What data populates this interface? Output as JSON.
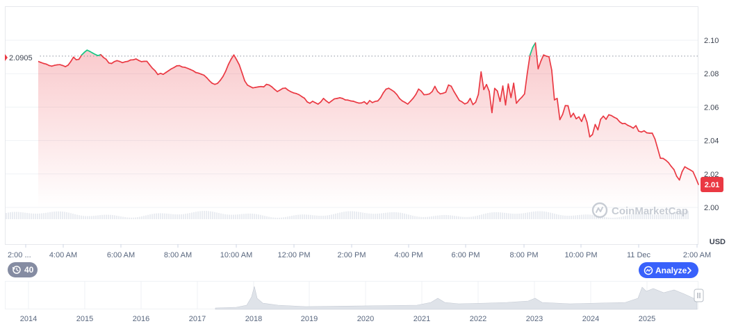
{
  "chart_data": {
    "type": "line",
    "ylabel": "USD",
    "ylim": [
      2.0,
      2.105
    ],
    "y_ticks": [
      "2.00",
      "2.02",
      "2.04",
      "2.06",
      "2.08",
      "2.10"
    ],
    "x_ticks": [
      "2:00 ...",
      "4:00 AM",
      "6:00 AM",
      "8:00 AM",
      "10:00 AM",
      "12:00 PM",
      "2:00 PM",
      "4:00 PM",
      "6:00 PM",
      "8:00 PM",
      "10:00 PM",
      "11 Dec",
      "2:00 AM"
    ],
    "reference_value": 2.0905,
    "reference_label": "2.0905",
    "current_value": 2.01,
    "current_label": "2.01",
    "grid": true,
    "colors": {
      "up": "#16c784",
      "down": "#ea3943",
      "area": "#ea3943"
    },
    "series": [
      {
        "values": [
          2.0873,
          2.0867,
          2.0861,
          2.0857,
          2.0849,
          2.0845,
          2.085,
          2.0853,
          2.0854,
          2.0849,
          2.0842,
          2.0851,
          2.0873,
          2.0899,
          2.0883,
          2.0886,
          2.0912,
          2.0928,
          2.0941,
          2.0933,
          2.0924,
          2.0915,
          2.0908,
          2.0914,
          2.0897,
          2.0886,
          2.0864,
          2.0861,
          2.0872,
          2.0878,
          2.0873,
          2.0866,
          2.0871,
          2.0874,
          2.0882,
          2.0883,
          2.0888,
          2.0879,
          2.0872,
          2.0874,
          2.0874,
          2.0853,
          2.0833,
          2.0818,
          2.0795,
          2.0802,
          2.0796,
          2.0807,
          2.0818,
          2.0829,
          2.0837,
          2.0847,
          2.0848,
          2.084,
          2.0838,
          2.0832,
          2.0825,
          2.0818,
          2.0807,
          2.0803,
          2.0797,
          2.0791,
          2.0776,
          2.0758,
          2.0743,
          2.0736,
          2.0742,
          2.076,
          2.0783,
          2.0815,
          2.0855,
          2.0887,
          2.0912,
          2.0884,
          2.0853,
          2.0806,
          2.0757,
          2.0732,
          2.0723,
          2.0715,
          2.0718,
          2.0721,
          2.0723,
          2.0721,
          2.0736,
          2.0732,
          2.0721,
          2.0706,
          2.0693,
          2.0702,
          2.0712,
          2.0714,
          2.0701,
          2.0692,
          2.0685,
          2.0681,
          2.0674,
          2.0663,
          2.0653,
          2.0631,
          2.0623,
          2.0635,
          2.0626,
          2.0618,
          2.0631,
          2.0652,
          2.0637,
          2.0625,
          2.0637,
          2.0649,
          2.0652,
          2.0656,
          2.0652,
          2.0643,
          2.0642,
          2.0637,
          2.0635,
          2.0629,
          2.0624,
          2.0625,
          2.0632,
          2.0618,
          2.0639,
          2.0627,
          2.0634,
          2.0637,
          2.0656,
          2.0685,
          2.0707,
          2.0713,
          2.0703,
          2.0692,
          2.0675,
          2.0651,
          2.0637,
          2.0628,
          2.0618,
          2.0635,
          2.0653,
          2.0676,
          2.0708,
          2.0695,
          2.0674,
          2.0675,
          2.0679,
          2.0693,
          2.0724,
          2.0693,
          2.0679,
          2.0683,
          2.0689,
          2.0732,
          2.0725,
          2.0694,
          2.0667,
          2.064,
          2.0631,
          2.0619,
          2.0626,
          2.0652,
          2.0615,
          2.0629,
          2.0676,
          2.0811,
          2.0705,
          2.0735,
          2.0694,
          2.0567,
          2.0712,
          2.0696,
          2.0634,
          2.0726,
          2.0613,
          2.0738,
          2.0657,
          2.0743,
          2.0623,
          2.0643,
          2.0659,
          2.0679,
          2.0802,
          2.0911,
          2.0957,
          2.0984,
          2.0829,
          2.0875,
          2.0912,
          2.0905,
          2.0901,
          2.0821,
          2.0643,
          2.0652,
          2.0525,
          2.0556,
          2.0609,
          2.0608,
          2.054,
          2.0563,
          2.053,
          2.0542,
          2.0514,
          2.0556,
          2.0509,
          2.0422,
          2.0436,
          2.0496,
          2.0464,
          2.0527,
          2.0546,
          2.0527,
          2.0554,
          2.0549,
          2.0539,
          2.0531,
          2.0512,
          2.0501,
          2.0502,
          2.0491,
          2.0484,
          2.0474,
          2.0489,
          2.0456,
          2.0451,
          2.0458,
          2.0446,
          2.0444,
          2.0444,
          2.0409,
          2.0352,
          2.0294,
          2.0293,
          2.0282,
          2.0267,
          2.0245,
          2.0226,
          2.0186,
          2.0164,
          2.0214,
          2.0243,
          2.0233,
          2.0224,
          2.0214,
          2.0177,
          2.0137
        ]
      }
    ]
  },
  "navigator": {
    "years": [
      "2014",
      "2015",
      "2016",
      "2017",
      "2018",
      "2019",
      "2020",
      "2021",
      "2022",
      "2023",
      "2024",
      "2025"
    ]
  },
  "watermark": {
    "text": "CoinMarketCap"
  },
  "controls": {
    "history_badge": "40",
    "analyze_button": "Analyze",
    "handle_icon": "drag-handle-icon",
    "history_icon": "history-icon",
    "analyze_icon": "logo-icon",
    "chevron_icon": "chevron-right-icon"
  }
}
